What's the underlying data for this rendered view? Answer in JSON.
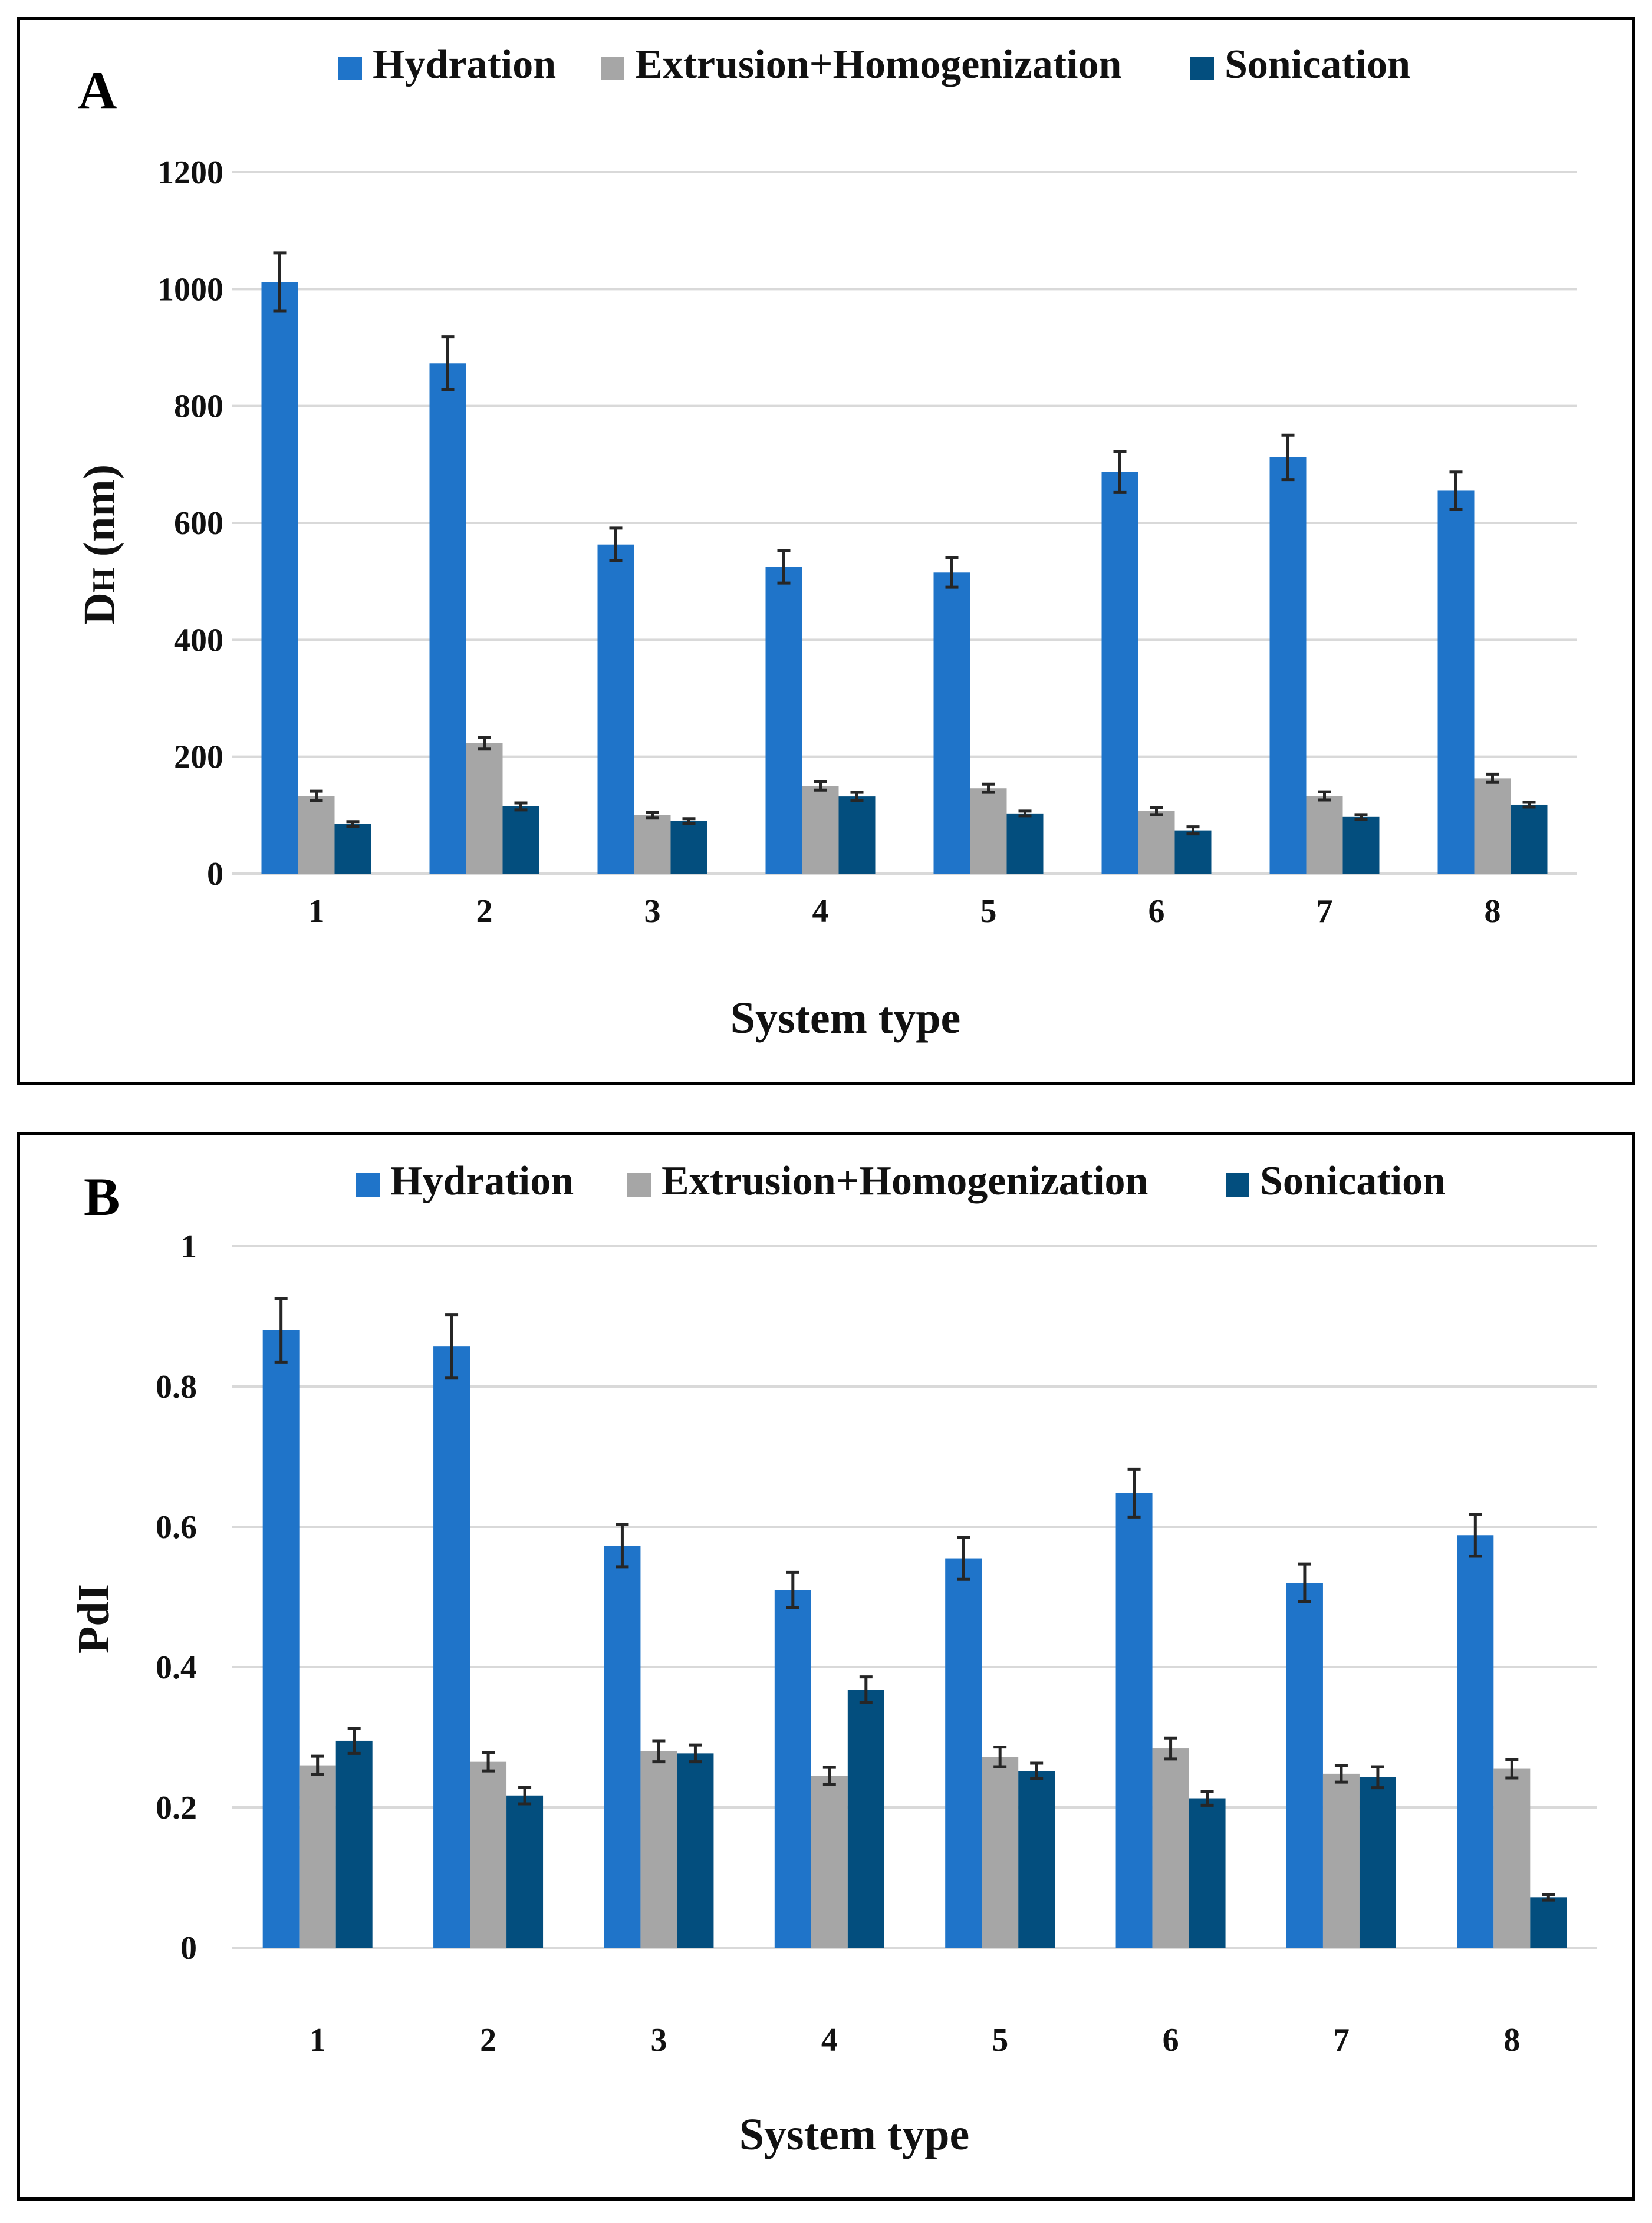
{
  "chart_data": [
    {
      "id": "A",
      "type": "bar",
      "panel_label": "A",
      "title": "",
      "xlabel": "System type",
      "ylabel_main": "D",
      "ylabel_sub": "H",
      "ylabel_unit": " (nm)",
      "ylim": [
        0,
        1200
      ],
      "yticks": [
        0,
        200,
        400,
        600,
        800,
        1000,
        1200
      ],
      "ytick_labels": [
        "0",
        "200",
        "400",
        "600",
        "800",
        "1000",
        "1200"
      ],
      "categories": [
        "1",
        "2",
        "3",
        "4",
        "5",
        "6",
        "7",
        "8"
      ],
      "grid": true,
      "legend_position": "top",
      "series": [
        {
          "name": "Hydration",
          "color": "#1f74c9",
          "values": [
            1012,
            873,
            563,
            525,
            515,
            687,
            712,
            655
          ],
          "errors": [
            50,
            45,
            28,
            28,
            25,
            35,
            38,
            32
          ]
        },
        {
          "name": "Extrusion+Homogenization",
          "color": "#a6a6a6",
          "values": [
            133,
            223,
            100,
            150,
            146,
            107,
            133,
            163
          ],
          "errors": [
            8,
            10,
            5,
            7,
            7,
            6,
            7,
            7
          ]
        },
        {
          "name": "Sonication",
          "color": "#034e7e",
          "values": [
            85,
            115,
            90,
            132,
            103,
            74,
            97,
            118
          ],
          "errors": [
            4,
            6,
            4,
            7,
            4,
            6,
            4,
            4
          ]
        }
      ]
    },
    {
      "id": "B",
      "type": "bar",
      "panel_label": "B",
      "title": "",
      "xlabel": "System type",
      "ylabel_main": "PdI",
      "ylabel_sub": "",
      "ylabel_unit": "",
      "ylim": [
        0,
        1
      ],
      "yticks": [
        0,
        0.2,
        0.4,
        0.6,
        0.8,
        1
      ],
      "ytick_labels": [
        "0",
        "0.2",
        "0.4",
        "0.6",
        "0.8",
        "1"
      ],
      "categories": [
        "1",
        "2",
        "3",
        "4",
        "5",
        "6",
        "7",
        "8"
      ],
      "grid": true,
      "legend_position": "top",
      "series": [
        {
          "name": "Hydration",
          "color": "#1f74c9",
          "values": [
            0.88,
            0.857,
            0.573,
            0.51,
            0.555,
            0.648,
            0.52,
            0.588
          ],
          "errors": [
            0.045,
            0.045,
            0.03,
            0.025,
            0.03,
            0.034,
            0.027,
            0.03
          ]
        },
        {
          "name": "Extrusion+Homogenization",
          "color": "#a6a6a6",
          "values": [
            0.26,
            0.265,
            0.28,
            0.245,
            0.272,
            0.284,
            0.248,
            0.255
          ],
          "errors": [
            0.013,
            0.013,
            0.015,
            0.012,
            0.014,
            0.015,
            0.012,
            0.013
          ]
        },
        {
          "name": "Sonication",
          "color": "#034e7e",
          "values": [
            0.295,
            0.217,
            0.277,
            0.368,
            0.252,
            0.213,
            0.243,
            0.072
          ],
          "errors": [
            0.018,
            0.012,
            0.012,
            0.018,
            0.011,
            0.01,
            0.015,
            0.004
          ]
        }
      ]
    }
  ]
}
